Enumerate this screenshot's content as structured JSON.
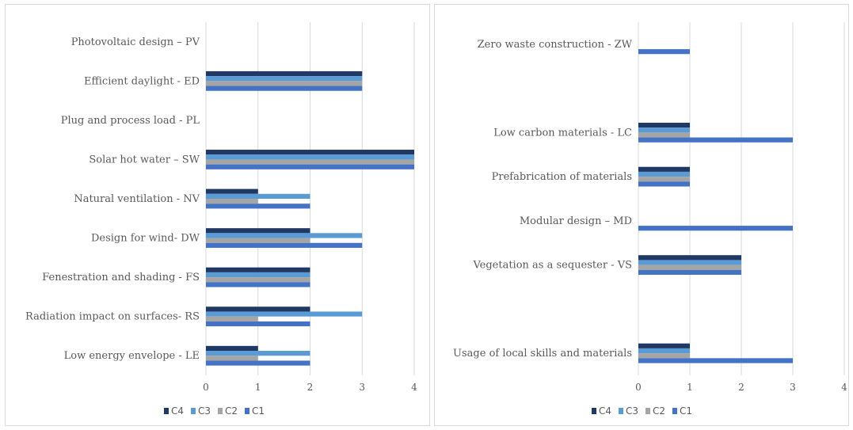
{
  "chart_data": [
    {
      "type": "bar",
      "orientation": "horizontal",
      "title": "",
      "xlabel": "",
      "ylabel": "",
      "xlim": [
        0,
        4
      ],
      "xticks": [
        "0",
        "1",
        "2",
        "3",
        "4"
      ],
      "grid": true,
      "legend_position": "bottom",
      "categories": [
        "Photovoltaic design – PV",
        "Efficient daylight - ED",
        "Plug and process load - PL",
        "Solar hot water – SW",
        "Natural ventilation - NV",
        "Design for wind- DW",
        "Fenestration and shading - FS",
        "Radiation impact on surfaces- RS",
        "Low energy envelope - LE"
      ],
      "series": [
        {
          "name": "C4",
          "color": "#203864",
          "values": [
            0,
            3,
            0,
            4,
            1,
            2,
            2,
            2,
            1
          ]
        },
        {
          "name": "C3",
          "color": "#5b9bd5",
          "values": [
            0,
            3,
            0,
            4,
            2,
            3,
            2,
            3,
            2
          ]
        },
        {
          "name": "C2",
          "color": "#a5a5a5",
          "values": [
            0,
            3,
            0,
            4,
            1,
            2,
            2,
            1,
            1
          ]
        },
        {
          "name": "C1",
          "color": "#4472c4",
          "values": [
            0,
            3,
            0,
            4,
            2,
            3,
            2,
            2,
            2
          ]
        }
      ]
    },
    {
      "type": "bar",
      "orientation": "horizontal",
      "title": "",
      "xlabel": "",
      "ylabel": "",
      "xlim": [
        0,
        4
      ],
      "xticks": [
        "0",
        "1",
        "2",
        "3",
        "4"
      ],
      "grid": true,
      "legend_position": "bottom",
      "categories": [
        "Zero waste construction - ZW",
        "",
        "Low carbon materials - LC",
        "Prefabrication of materials",
        "Modular design – MD",
        "Vegetation as a sequester - VS",
        "",
        "Usage of local skills and materials"
      ],
      "series": [
        {
          "name": "C4",
          "color": "#203864",
          "values": [
            0,
            0,
            1,
            1,
            0,
            2,
            0,
            1
          ]
        },
        {
          "name": "C3",
          "color": "#5b9bd5",
          "values": [
            0,
            0,
            1,
            1,
            0,
            2,
            0,
            1
          ]
        },
        {
          "name": "C2",
          "color": "#a5a5a5",
          "values": [
            0,
            0,
            1,
            1,
            0,
            2,
            0,
            1
          ]
        },
        {
          "name": "C1",
          "color": "#4472c4",
          "values": [
            1,
            0,
            3,
            1,
            3,
            2,
            0,
            3
          ]
        }
      ]
    }
  ]
}
